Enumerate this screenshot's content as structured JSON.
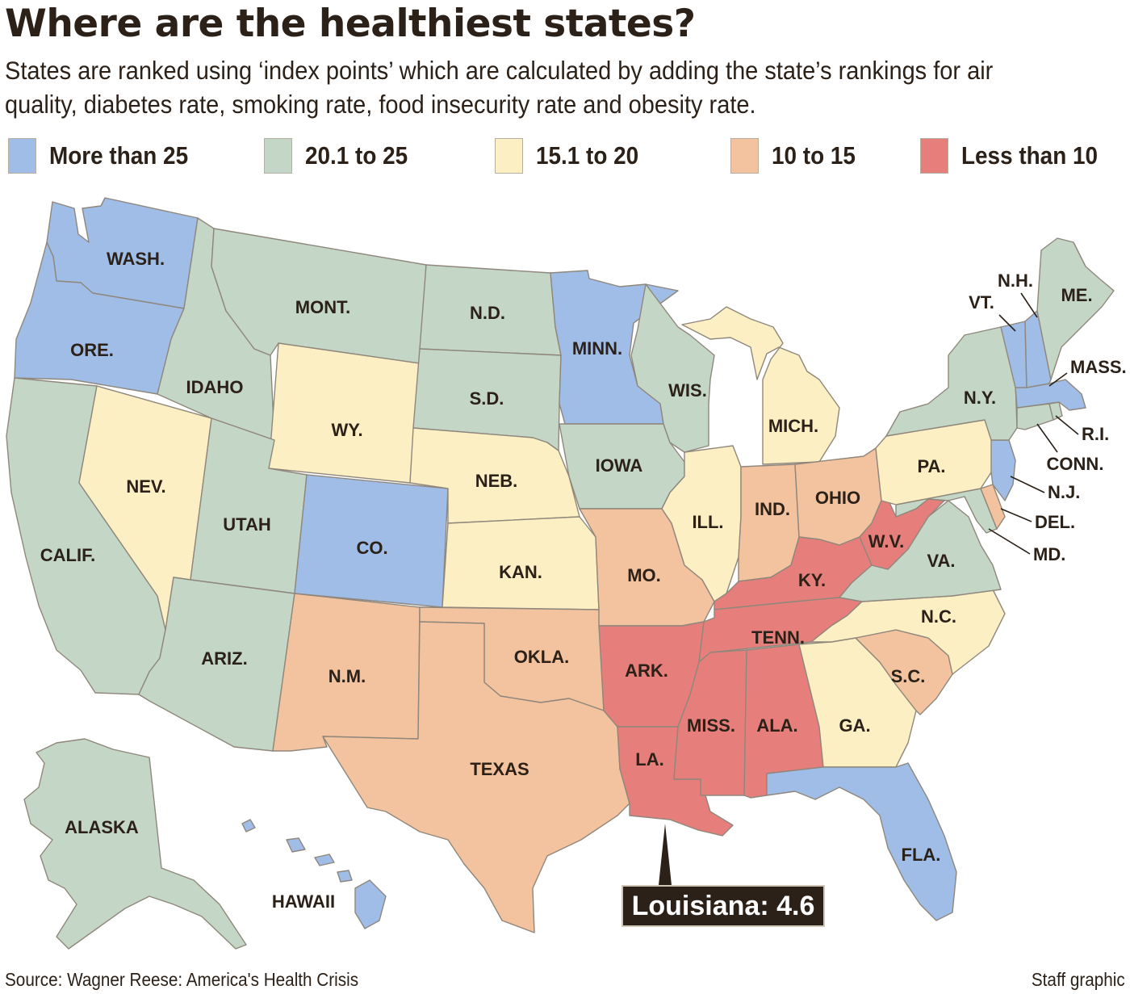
{
  "title": "Where are the healthiest states?",
  "subtitle": "States are ranked using ‘index points’ which are calculated by adding the state’s rankings for air quality, diabetes rate, smoking rate, food insecurity rate and obesity rate.",
  "legend": [
    {
      "label": "More than 25",
      "color": "#9fbde6"
    },
    {
      "label": "20.1 to 25",
      "color": "#c4d6c5"
    },
    {
      "label": "15.1 to 20",
      "color": "#fcefc4"
    },
    {
      "label": "10 to 15",
      "color": "#f3c29e"
    },
    {
      "label": "Less than 10",
      "color": "#e67f7b"
    }
  ],
  "states": {
    "wash": {
      "label": "WASH.",
      "category": "More than 25"
    },
    "ore": {
      "label": "ORE.",
      "category": "More than 25"
    },
    "calif": {
      "label": "CALIF.",
      "category": "20.1 to 25"
    },
    "idaho": {
      "label": "IDAHO",
      "category": "20.1 to 25"
    },
    "nev": {
      "label": "NEV.",
      "category": "15.1 to 20"
    },
    "mont": {
      "label": "MONT.",
      "category": "20.1 to 25"
    },
    "wy": {
      "label": "WY.",
      "category": "15.1 to 20"
    },
    "utah": {
      "label": "UTAH",
      "category": "20.1 to 25"
    },
    "ariz": {
      "label": "ARIZ.",
      "category": "20.1 to 25"
    },
    "co": {
      "label": "CO.",
      "category": "More than 25"
    },
    "nm": {
      "label": "N.M.",
      "category": "10 to 15"
    },
    "nd": {
      "label": "N.D.",
      "category": "20.1 to 25"
    },
    "sd": {
      "label": "S.D.",
      "category": "20.1 to 25"
    },
    "neb": {
      "label": "NEB.",
      "category": "15.1 to 20"
    },
    "kan": {
      "label": "KAN.",
      "category": "15.1 to 20"
    },
    "okla": {
      "label": "OKLA.",
      "category": "10 to 15"
    },
    "texas": {
      "label": "TEXAS",
      "category": "10 to 15"
    },
    "minn": {
      "label": "MINN.",
      "category": "More than 25"
    },
    "iowa": {
      "label": "IOWA",
      "category": "20.1 to 25"
    },
    "mo": {
      "label": "MO.",
      "category": "10 to 15"
    },
    "ark": {
      "label": "ARK.",
      "category": "Less than 10"
    },
    "la": {
      "label": "LA.",
      "category": "Less than 10"
    },
    "wis": {
      "label": "WIS.",
      "category": "20.1 to 25"
    },
    "ill": {
      "label": "ILL.",
      "category": "15.1 to 20"
    },
    "mich": {
      "label": "MICH.",
      "category": "15.1 to 20"
    },
    "ind": {
      "label": "IND.",
      "category": "10 to 15"
    },
    "ohio": {
      "label": "OHIO",
      "category": "10 to 15"
    },
    "ky": {
      "label": "KY.",
      "category": "Less than 10"
    },
    "tenn": {
      "label": "TENN.",
      "category": "Less than 10"
    },
    "miss": {
      "label": "MISS.",
      "category": "Less than 10"
    },
    "ala": {
      "label": "ALA.",
      "category": "Less than 10"
    },
    "ga": {
      "label": "GA.",
      "category": "15.1 to 20"
    },
    "fla": {
      "label": "FLA.",
      "category": "More than 25"
    },
    "sc": {
      "label": "S.C.",
      "category": "10 to 15"
    },
    "nc": {
      "label": "N.C.",
      "category": "15.1 to 20"
    },
    "va": {
      "label": "VA.",
      "category": "20.1 to 25"
    },
    "wv": {
      "label": "W.V.",
      "category": "Less than 10"
    },
    "pa": {
      "label": "PA.",
      "category": "15.1 to 20"
    },
    "ny": {
      "label": "N.Y.",
      "category": "20.1 to 25"
    },
    "me": {
      "label": "ME.",
      "category": "20.1 to 25"
    },
    "vt": {
      "label": "VT.",
      "category": "More than 25"
    },
    "nh": {
      "label": "N.H.",
      "category": "More than 25"
    },
    "mass": {
      "label": "MASS.",
      "category": "More than 25"
    },
    "ri": {
      "label": "R.I.",
      "category": "20.1 to 25"
    },
    "conn": {
      "label": "CONN.",
      "category": "20.1 to 25"
    },
    "nj": {
      "label": "N.J.",
      "category": "More than 25"
    },
    "del": {
      "label": "DEL.",
      "category": "10 to 15"
    },
    "md": {
      "label": "MD.",
      "category": "20.1 to 25"
    },
    "alaska": {
      "label": "ALASKA",
      "category": "20.1 to 25"
    },
    "hawaii": {
      "label": "HAWAII",
      "category": "More than 25"
    }
  },
  "callout": "Louisiana: 4.6",
  "source": "Source: Wagner Reese: America's Health Crisis",
  "credit": "Staff graphic"
}
